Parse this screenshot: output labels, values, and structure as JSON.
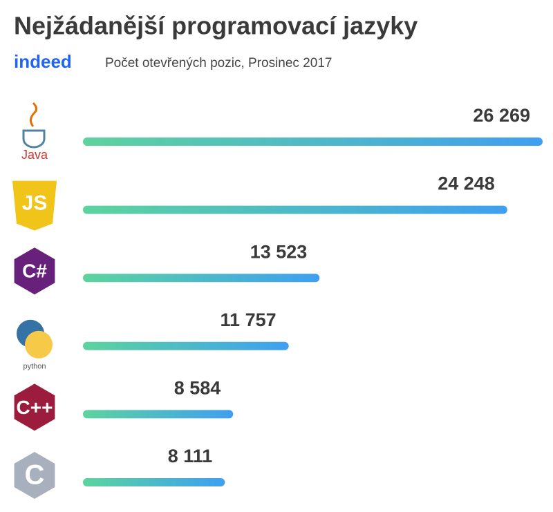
{
  "chart_data": {
    "type": "bar",
    "orientation": "horizontal",
    "title": "Nejžádanější programovací jazyky",
    "source": "indeed",
    "subtitle": "Počet otevřených pozic, Prosinec 2017",
    "categories": [
      "Java",
      "JS",
      "C#",
      "python",
      "C++",
      "C"
    ],
    "values": [
      26269,
      24248,
      13523,
      11757,
      8584,
      8111
    ],
    "value_labels": [
      "26 269",
      "24 248",
      "13 523",
      "11 757",
      "8 584",
      "8 111"
    ],
    "color_start": "#5dd39e",
    "color_end": "#3f9ff0",
    "icon_colors": [
      "#e76f00",
      "#f0c419",
      "#68217a",
      "#3572a5",
      "#9b1c3c",
      "#a8b0bd"
    ]
  }
}
